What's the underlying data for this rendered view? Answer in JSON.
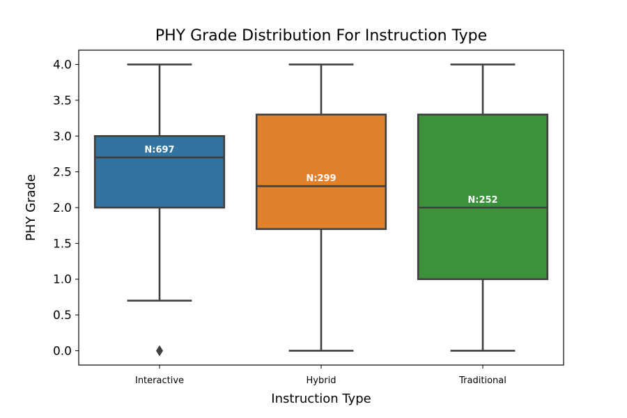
{
  "chart_data": {
    "type": "box",
    "title": "PHY Grade Distribution For Instruction Type",
    "xlabel": "Instruction Type",
    "ylabel": "PHY Grade",
    "ylim": [
      -0.2,
      4.2
    ],
    "yticks": [
      "0.0",
      "0.5",
      "1.0",
      "1.5",
      "2.0",
      "2.5",
      "3.0",
      "3.5",
      "4.0"
    ],
    "grid": false,
    "categories": [
      "Interactive",
      "Hybrid",
      "Traditional"
    ],
    "boxes": [
      {
        "category": "Interactive",
        "color": "#3274a1",
        "whisker_low": 0.7,
        "q1": 2.0,
        "median": 2.7,
        "q3": 3.0,
        "whisker_high": 4.0,
        "outliers": [
          0.0
        ],
        "n_label": "N:697"
      },
      {
        "category": "Hybrid",
        "color": "#e1812c",
        "whisker_low": 0.0,
        "q1": 1.7,
        "median": 2.3,
        "q3": 3.3,
        "whisker_high": 4.0,
        "outliers": [],
        "n_label": "N:299"
      },
      {
        "category": "Traditional",
        "color": "#3a923a",
        "whisker_low": 0.0,
        "q1": 1.0,
        "median": 2.0,
        "q3": 3.3,
        "whisker_high": 4.0,
        "outliers": [],
        "n_label": "N:252"
      }
    ]
  }
}
